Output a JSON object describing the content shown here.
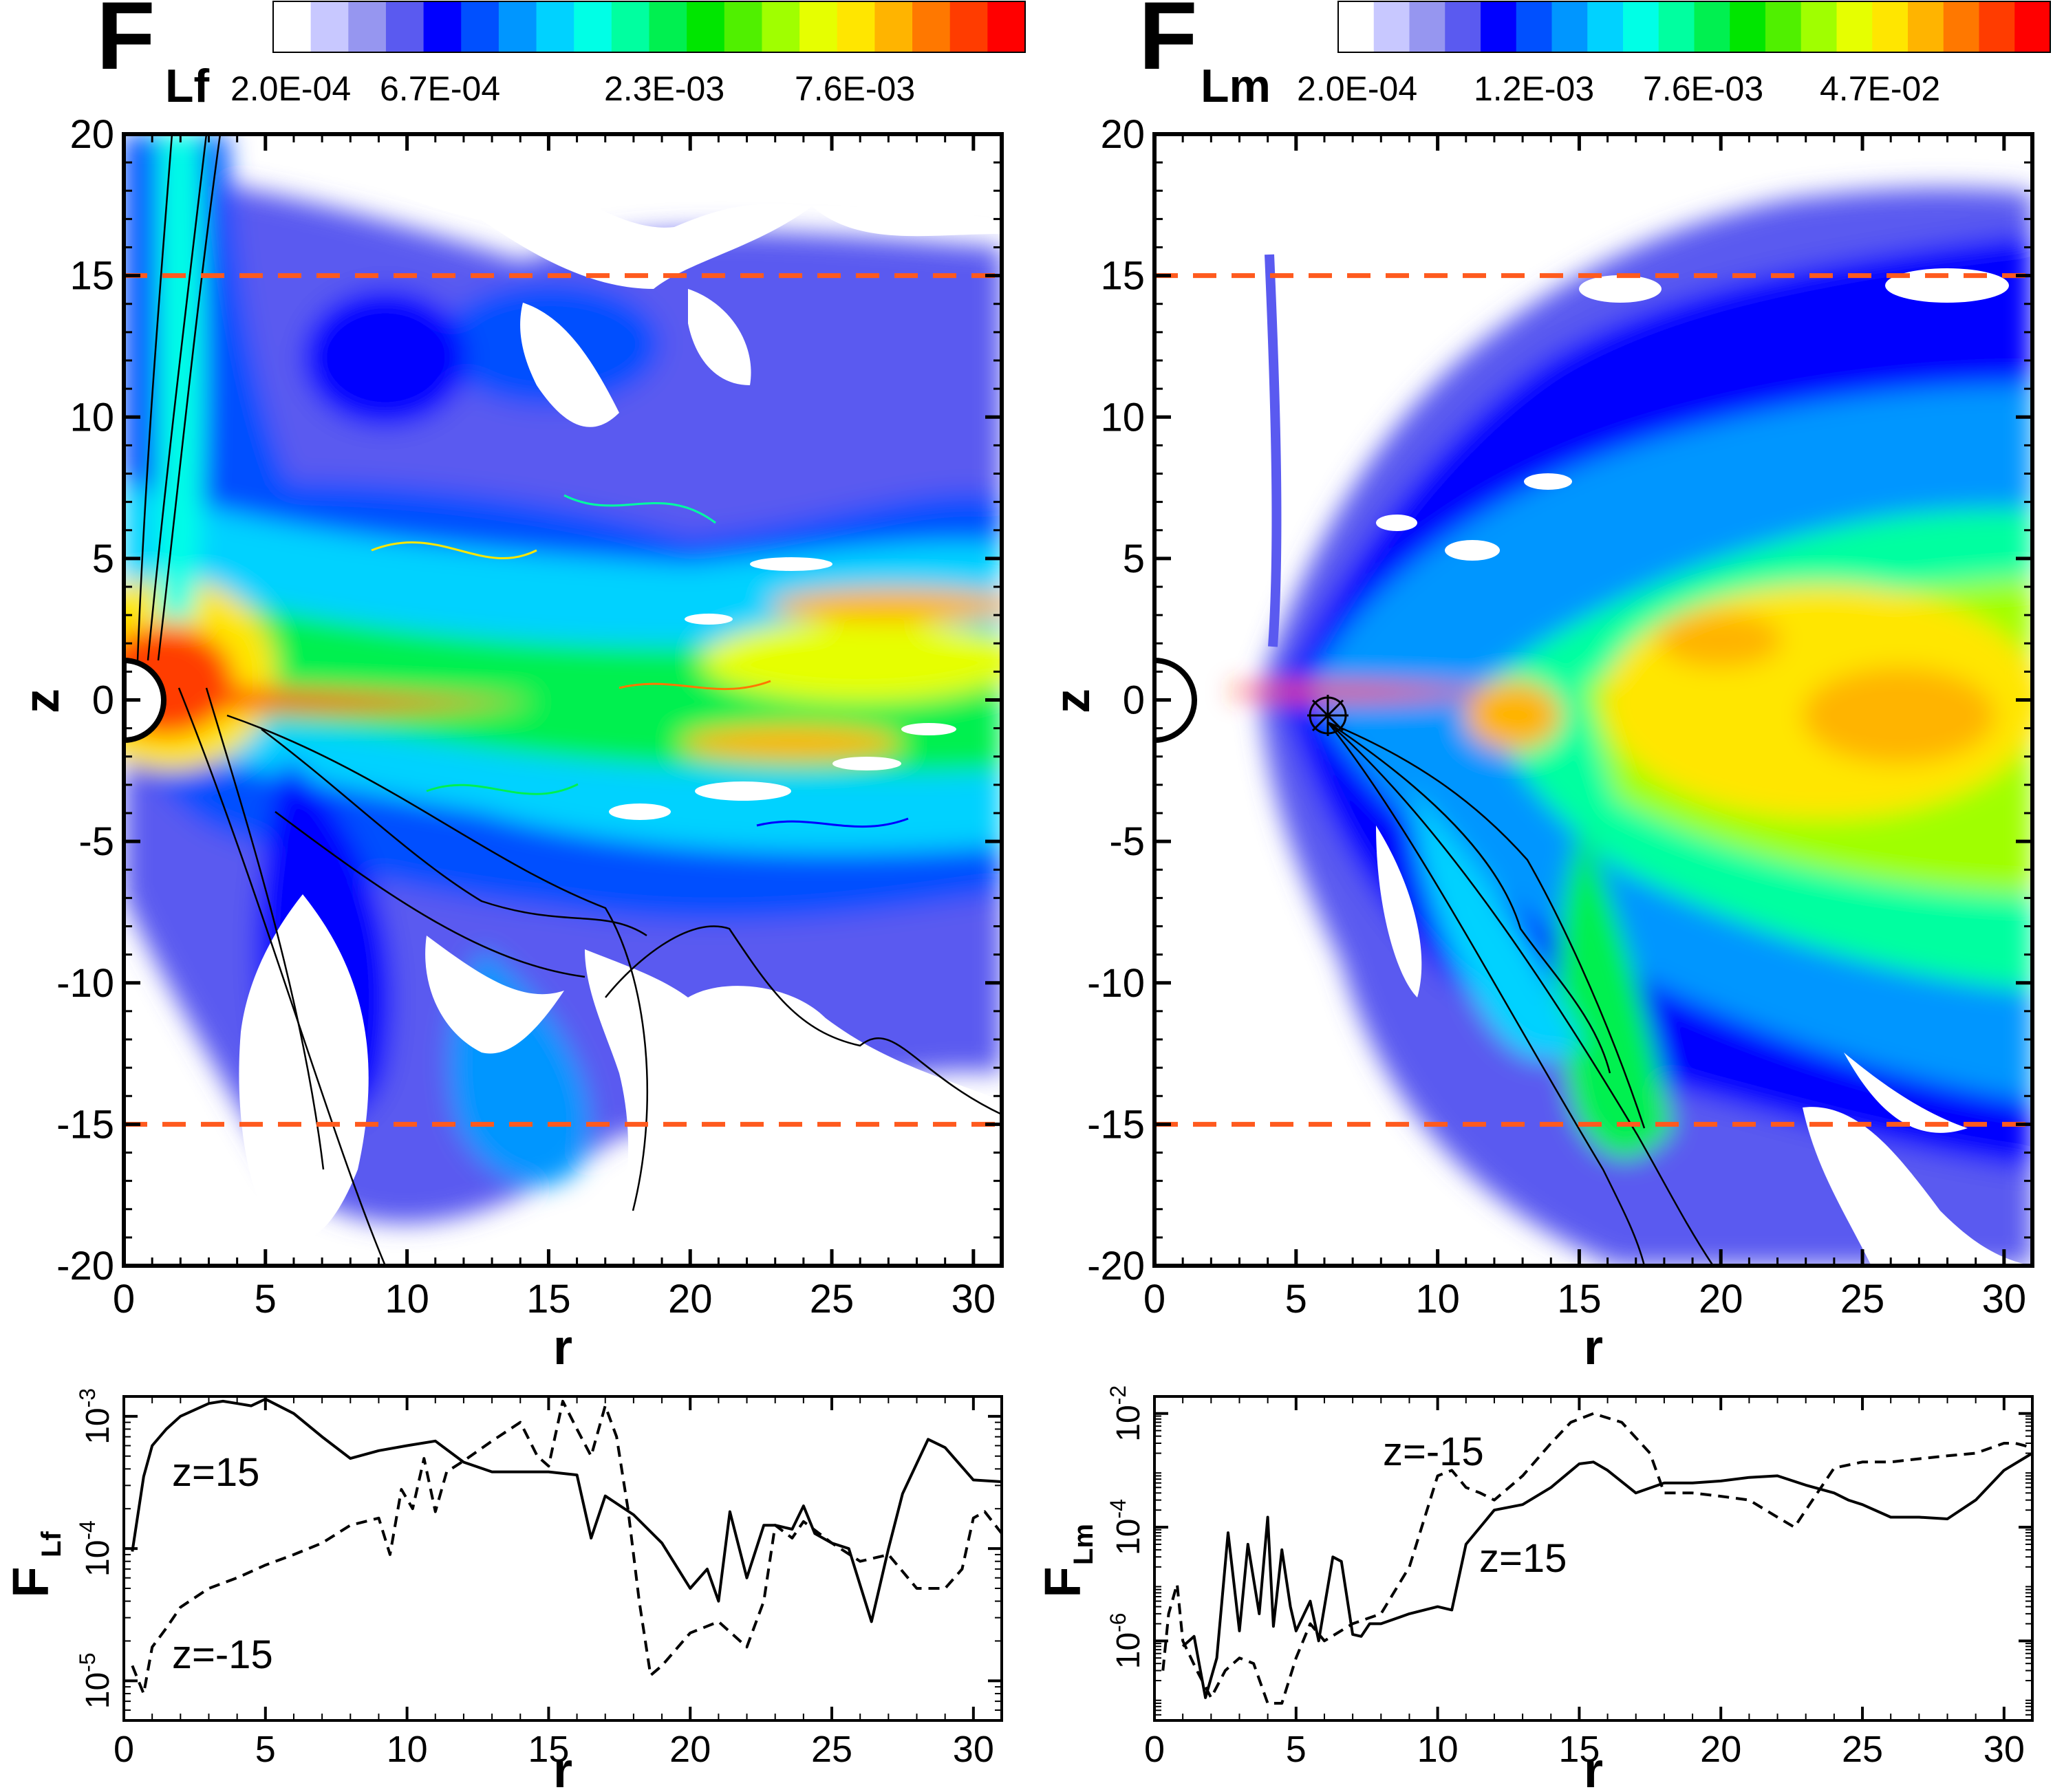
{
  "colors": {
    "contour_scale": [
      "#ffffff",
      "#c8c8ff",
      "#9696f0",
      "#5a5af0",
      "#0000ff",
      "#0050ff",
      "#0096ff",
      "#00d2ff",
      "#00ffe6",
      "#00ffa0",
      "#00f050",
      "#00e600",
      "#50f000",
      "#a0ff00",
      "#e6ff00",
      "#ffe600",
      "#ffb400",
      "#ff7800",
      "#ff3c00",
      "#ff0000"
    ],
    "cutline": "#ff5a1e",
    "line": "#000000"
  },
  "chart_data": [
    {
      "type": "heatmap",
      "panel_letter": "F",
      "panel_subscript": "Lf",
      "colorbar_ticks": [
        "2.0E-04",
        "6.7E-04",
        "2.3E-03",
        "7.6E-03"
      ],
      "xlabel": "r",
      "ylabel": "z",
      "xlim": [
        0,
        31
      ],
      "ylim": [
        -20,
        20
      ],
      "xticks": [
        0,
        5,
        10,
        15,
        20,
        25,
        30
      ],
      "yticks": [
        20,
        15,
        10,
        5,
        0,
        -5,
        -10,
        -15,
        -20
      ],
      "cut_lines_z": [
        15,
        -15
      ]
    },
    {
      "type": "heatmap",
      "panel_letter": "F",
      "panel_subscript": "Lm",
      "colorbar_ticks": [
        "2.0E-04",
        "1.2E-03",
        "7.6E-03",
        "4.7E-02"
      ],
      "xlabel": "r",
      "ylabel": "z",
      "xlim": [
        0,
        31
      ],
      "ylim": [
        -20,
        20
      ],
      "xticks": [
        0,
        5,
        10,
        15,
        20,
        25,
        30
      ],
      "yticks": [
        20,
        15,
        10,
        5,
        0,
        -5,
        -10,
        -15,
        -20
      ],
      "cut_lines_z": [
        15,
        -15
      ]
    },
    {
      "type": "line",
      "ylabel_letter": "F",
      "ylabel_subscript": "Lf",
      "xlabel": "r",
      "xlim": [
        0,
        31
      ],
      "ylog": true,
      "ylim_log10": [
        -5.3,
        -2.85
      ],
      "xticks": [
        0,
        5,
        10,
        15,
        20,
        25,
        30
      ],
      "ytick_exponents": [
        "-5",
        "-4",
        "-3"
      ],
      "ytick_base": "10",
      "series": [
        {
          "name": "z=15",
          "dash": "solid",
          "x": [
            0.3,
            0.7,
            1,
            1.5,
            2,
            3,
            3.5,
            4,
            4.5,
            5,
            6,
            7,
            8,
            9,
            10,
            11,
            12,
            13,
            14,
            15,
            16,
            16.5,
            17,
            18,
            19,
            20,
            20.6,
            21,
            21.4,
            22,
            22.6,
            23,
            23.6,
            24,
            24.4,
            25,
            25.6,
            26.4,
            27,
            27.5,
            28.4,
            29,
            30,
            31
          ],
          "y": [
            9.5e-05,
            0.00035,
            0.0006,
            0.0008,
            0.001,
            0.00125,
            0.0013,
            0.00125,
            0.0012,
            0.00135,
            0.00105,
            0.0007,
            0.00048,
            0.00055,
            0.0006,
            0.00065,
            0.00045,
            0.00038,
            0.00038,
            0.00038,
            0.00036,
            0.00012,
            0.00025,
            0.00018,
            0.00011,
            5e-05,
            7e-05,
            4e-05,
            0.00019,
            6e-05,
            0.00015,
            0.00015,
            0.00014,
            0.00021,
            0.00013,
            0.00011,
            0.0001,
            2.8e-05,
            0.0001,
            0.00026,
            0.00067,
            0.00058,
            0.00033,
            0.00032
          ]
        },
        {
          "name": "z=-15",
          "dash": "dashed",
          "x": [
            0.3,
            0.7,
            1,
            1.5,
            2,
            3,
            4,
            5,
            6,
            7,
            8,
            9,
            9.4,
            9.8,
            10.2,
            10.6,
            11,
            11.4,
            12,
            13,
            14,
            14.6,
            15,
            15.5,
            16,
            16.5,
            17,
            17.4,
            17.8,
            18.2,
            18.6,
            19,
            20,
            21,
            22,
            22.6,
            23,
            23.6,
            24,
            25,
            26,
            27,
            28,
            29,
            29.6,
            30,
            30.4,
            31
          ],
          "y": [
            1.3e-05,
            8e-06,
            1.8e-05,
            2.5e-05,
            3.6e-05,
            5e-05,
            6e-05,
            7.5e-05,
            9e-05,
            0.00011,
            0.00015,
            0.00017,
            9e-05,
            0.00028,
            0.0002,
            0.00048,
            0.00019,
            0.00038,
            0.00046,
            0.00065,
            0.0009,
            0.0005,
            0.00042,
            0.0013,
            0.0008,
            0.0005,
            0.0012,
            0.0007,
            0.0002,
            4e-05,
            1.1e-05,
            1.3e-05,
            2.3e-05,
            2.8e-05,
            1.8e-05,
            4e-05,
            0.00015,
            0.00012,
            0.00016,
            0.00011,
            8e-05,
            9e-05,
            5e-05,
            5e-05,
            7e-05,
            0.00017,
            0.00019,
            0.00013
          ]
        }
      ]
    },
    {
      "type": "line",
      "ylabel_letter": "F",
      "ylabel_subscript": "Lm",
      "xlabel": "r",
      "xlim": [
        0,
        31
      ],
      "ylog": true,
      "ylim_log10": [
        -7.4,
        -1.7
      ],
      "xticks": [
        0,
        5,
        10,
        15,
        20,
        25,
        30
      ],
      "ytick_exponents": [
        "-6",
        "-4",
        "-2"
      ],
      "ytick_base": "10",
      "series": [
        {
          "name": "z=15",
          "dash": "solid",
          "x": [
            1,
            1.4,
            1.8,
            2.2,
            2.6,
            3,
            3.3,
            3.7,
            4,
            4.2,
            4.5,
            4.8,
            5,
            5.5,
            5.8,
            6.3,
            6.6,
            7,
            7.3,
            7.6,
            8,
            9,
            10,
            10.5,
            11,
            12,
            13,
            14,
            15,
            15.5,
            16,
            17,
            18,
            19,
            20,
            21,
            22,
            23,
            24,
            24.5,
            25,
            26,
            27,
            28,
            29,
            30,
            31
          ],
          "y": [
            8e-07,
            1.2e-06,
            1e-07,
            5e-07,
            8e-05,
            1.5e-06,
            5e-05,
            3e-06,
            0.00015,
            1.8e-06,
            4e-05,
            4e-06,
            1.5e-06,
            5e-06,
            1e-06,
            3e-05,
            2.5e-05,
            1.3e-06,
            1.2e-06,
            2e-06,
            2e-06,
            3e-06,
            4e-06,
            3.5e-06,
            5e-05,
            0.0002,
            0.00025,
            0.0005,
            0.0013,
            0.0014,
            0.001,
            0.0004,
            0.0006,
            0.0006,
            0.00065,
            0.00075,
            0.0008,
            0.00055,
            0.0004,
            0.0003,
            0.00025,
            0.00015,
            0.00015,
            0.00014,
            0.0003,
            0.001,
            0.002
          ]
        },
        {
          "name": "z=-15",
          "dash": "dashed",
          "x": [
            0.3,
            0.5,
            0.8,
            1,
            1.5,
            2,
            2.5,
            3,
            3.5,
            4,
            4.5,
            5,
            5.5,
            6,
            7,
            8,
            9,
            10,
            10.5,
            11,
            11.5,
            12,
            13,
            14,
            14.7,
            15.5,
            16.5,
            17.5,
            18,
            19,
            20,
            21,
            22,
            22.6,
            23,
            24,
            25,
            26,
            27,
            28,
            29,
            30,
            30.4,
            31
          ],
          "y": [
            3e-07,
            3e-06,
            1e-05,
            1e-06,
            3e-07,
            1e-07,
            3e-07,
            5e-07,
            4e-07,
            8e-08,
            8e-08,
            5e-07,
            2e-06,
            1e-06,
            2e-06,
            3e-06,
            2e-05,
            0.0008,
            0.001,
            0.0005,
            0.0004,
            0.0003,
            0.0008,
            0.003,
            0.007,
            0.01,
            0.007,
            0.002,
            0.0004,
            0.0004,
            0.00035,
            0.0003,
            0.00015,
            0.0001,
            0.0002,
            0.0011,
            0.0014,
            0.0014,
            0.0016,
            0.0018,
            0.002,
            0.003,
            0.003,
            0.0025
          ]
        }
      ]
    }
  ]
}
